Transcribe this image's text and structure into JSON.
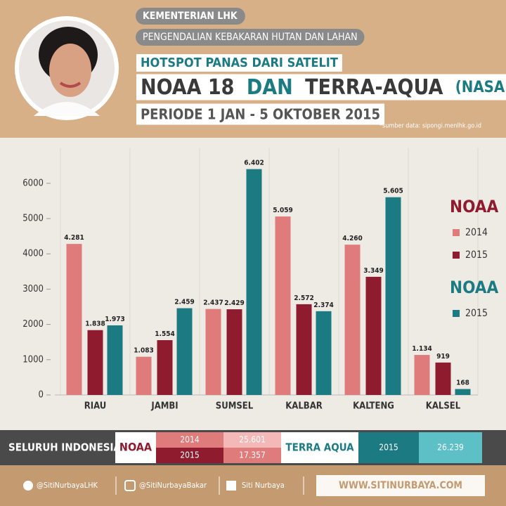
{
  "header": {
    "ministry": "KEMENTERIAN LHK",
    "program": "PENGENDALIAN KEBAKARAN HUTAN DAN LAHAN",
    "subtitle": "HOTSPOT PANAS DARI SATELIT",
    "title_parts": [
      "NOAA 18",
      "DAN",
      "TERRA-AQUA",
      "(NASA)"
    ],
    "period": "PERIODE 1 JAN - 5 OKTOBER 2015",
    "source": "*sumber data: sipongi.menlhk.go.id"
  },
  "chart_data": {
    "type": "bar",
    "categories": [
      "RIAU",
      "JAMBI",
      "SUMSEL",
      "KALBAR",
      "KALTENG",
      "KALSEL"
    ],
    "series": [
      {
        "name": "2014",
        "color": "#e07b7b",
        "values": [
          4281,
          1083,
          2437,
          5059,
          4260,
          1134
        ],
        "value_labels": [
          "4.281",
          "1.083",
          "2.437",
          "5.059",
          "4.260",
          "1.134"
        ]
      },
      {
        "name": "2015",
        "color": "#8e1b2e",
        "values": [
          1838,
          1554,
          2429,
          2572,
          3349,
          919
        ],
        "value_labels": [
          "1.838",
          "1.554",
          "2.429",
          "2.572",
          "3.349",
          "919"
        ]
      },
      {
        "name": "2015",
        "color": "#1c7b82",
        "values": [
          1973,
          2459,
          6402,
          2374,
          5605,
          168
        ],
        "value_labels": [
          "1.973",
          "2.459",
          "6.402",
          "2.374",
          "5.605",
          "168"
        ]
      }
    ],
    "legend_groups": [
      {
        "title": "NOAA",
        "color": "#8e1b2e"
      },
      {
        "title": "NOAA",
        "color": "#1c7b82"
      }
    ],
    "ylim": [
      0,
      7000
    ],
    "yticks": [
      0,
      1000,
      2000,
      3000,
      4000,
      5000,
      6000
    ]
  },
  "summary": {
    "label": "SELURUH INDONESIA :",
    "noaa": {
      "name": "NOAA",
      "rows": [
        [
          "2014",
          "25.601"
        ],
        [
          "2015",
          "17.357"
        ]
      ]
    },
    "terra_aqua": {
      "name": "TERRA AQUA",
      "rows": [
        [
          "2015",
          "26.239"
        ]
      ]
    }
  },
  "footer": {
    "twitter": "@SitiNurbayaLHK",
    "instagram": "@SitiNurbayaBakar",
    "facebook": "Siti Nurbaya",
    "website": "WWW.SITINURBAYA.COM"
  }
}
